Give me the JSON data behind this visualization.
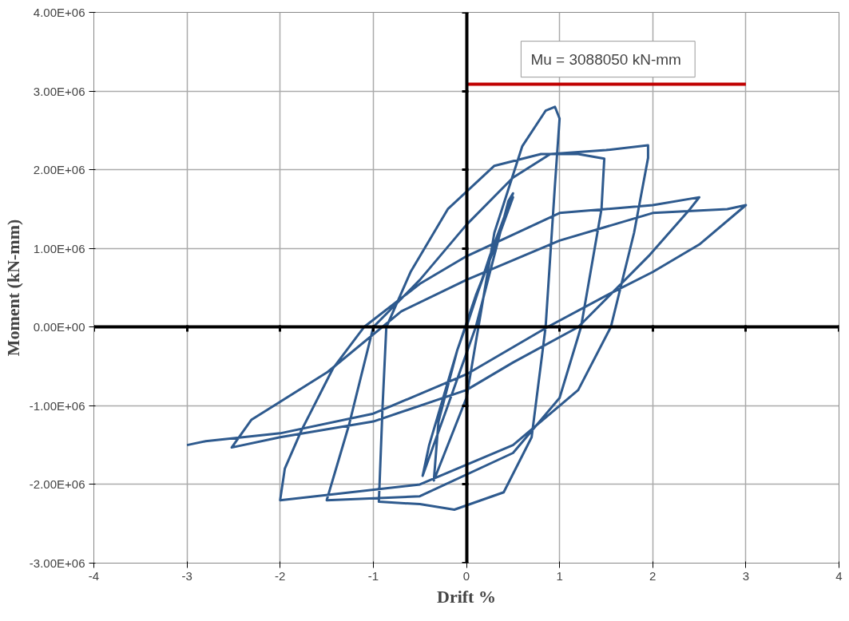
{
  "chart_data": {
    "type": "line",
    "xlabel": "Drift %",
    "ylabel": "Moment (kN-mm)",
    "xlim": [
      -4,
      4
    ],
    "ylim": [
      -3000000,
      4000000
    ],
    "xticks": [
      -4,
      -3,
      -2,
      -1,
      0,
      1,
      2,
      3,
      4
    ],
    "yticks": [
      {
        "value": -3000000,
        "label": "-3.00E+06"
      },
      {
        "value": -2000000,
        "label": "-2.00E+06"
      },
      {
        "value": -1000000,
        "label": "-1.00E+06"
      },
      {
        "value": 0,
        "label": "0.00E+00"
      },
      {
        "value": 1000000,
        "label": "1.00E+06"
      },
      {
        "value": 2000000,
        "label": "2.00E+06"
      },
      {
        "value": 3000000,
        "label": "3.00E+06"
      },
      {
        "value": 4000000,
        "label": "4.00E+06"
      }
    ],
    "grid": true,
    "marker": "none",
    "line_style": "solid",
    "annotations": [
      "Mu = 3088050  kN-mm"
    ],
    "series": [
      {
        "color": "#2e5a8e",
        "x": [
          0,
          0.25,
          0.5,
          0.45,
          0.1,
          -0.2,
          -0.47,
          -0.4,
          -0.1,
          0.2,
          0.5,
          0.3,
          0.1,
          -0.1,
          -0.3,
          -0.35,
          0.0,
          0.3,
          0.6,
          0.85,
          0.95,
          1.0,
          0.95,
          0.85,
          0.7,
          0.4,
          -0.13,
          -0.5,
          -0.94,
          -0.9,
          -0.86,
          -0.6,
          -0.2,
          0.3,
          0.8,
          1.2,
          1.48,
          1.45,
          1.23,
          1.0,
          0.5,
          -0.5,
          -1.5,
          -1.4,
          -1.26,
          -1.0,
          -0.5,
          0,
          0.5,
          0.9,
          1.5,
          1.95,
          1.95,
          1.8,
          1.55,
          1.2,
          0.5,
          -0.5,
          -2.0,
          -1.95,
          -1.77,
          -1.43,
          -1.1,
          -0.5,
          0,
          1.0,
          2.0,
          2.5,
          2.4,
          1.97,
          1.2,
          0.5,
          0,
          -1.0,
          -2.0,
          -2.52,
          -2.31,
          -1.49,
          -0.7,
          0,
          1.0,
          2.0,
          2.8,
          3.0,
          2.5,
          2.0,
          1.5,
          0.87,
          0,
          -1.0,
          -2.0,
          -2.8,
          -3.0
        ],
        "values": [
          0,
          900000,
          1700000,
          1600000,
          0,
          -1000000,
          -1890000,
          -1500000,
          -300000,
          700000,
          1650000,
          1000000,
          400000,
          -300000,
          -1200000,
          -1950000,
          -900000,
          1200000,
          2300000,
          2750000,
          2800000,
          2650000,
          1800000,
          0,
          -1400000,
          -2100000,
          -2320000,
          -2250000,
          -2220000,
          -1000000,
          0,
          700000,
          1500000,
          2050000,
          2200000,
          2200000,
          2140000,
          1500000,
          0,
          -900000,
          -1600000,
          -2150000,
          -2200000,
          -1800000,
          -1240000,
          0,
          600000,
          1300000,
          1900000,
          2200000,
          2250000,
          2310000,
          2150000,
          1200000,
          0,
          -800000,
          -1500000,
          -2000000,
          -2200000,
          -1800000,
          -1310000,
          -520000,
          0,
          550000,
          900000,
          1450000,
          1550000,
          1650000,
          1500000,
          920000,
          0,
          -450000,
          -800000,
          -1200000,
          -1400000,
          -1530000,
          -1180000,
          -570000,
          200000,
          600000,
          1100000,
          1450000,
          1500000,
          1550000,
          1050000,
          700000,
          400000,
          0,
          -600000,
          -1100000,
          -1350000,
          -1450000,
          -1500000
        ]
      },
      {
        "color": "#c00000",
        "x": [
          0,
          3
        ],
        "values": [
          3088050,
          3088050
        ]
      }
    ]
  }
}
